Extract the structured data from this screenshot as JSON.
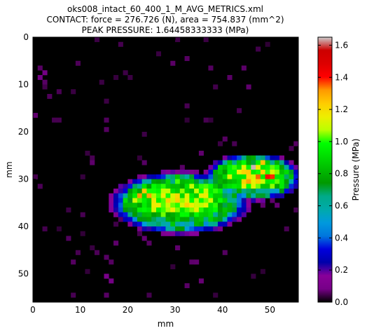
{
  "chart_data": {
    "type": "heatmap",
    "title_lines": [
      "oks008_intact_60_400_1_M_AVG_METRICS.xml",
      "CONTACT: force = 276.726 (N), area = 754.837 (mm^2)",
      "PEAK PRESSURE: 1.64458333333 (MPa)"
    ],
    "xlabel": "mm",
    "ylabel": "mm",
    "xlim": [
      0,
      56
    ],
    "ylim": [
      56,
      0
    ],
    "x_ticks": [
      0,
      10,
      20,
      30,
      40,
      50
    ],
    "y_ticks": [
      0,
      10,
      20,
      30,
      40,
      50
    ],
    "grid": false,
    "colorbar": {
      "label": "Pressure (MPa)",
      "range": [
        0.0,
        1.65
      ],
      "ticks": [
        "0.0",
        "0.2",
        "0.4",
        "0.6",
        "0.8",
        "1.0",
        "1.2",
        "1.4",
        "1.6"
      ],
      "colormap": "nipy_spectral"
    },
    "peak_pressure": 1.64458333333,
    "contact_force_N": 276.726,
    "contact_area_mm2": 754.837,
    "grid_size_mm": 56,
    "cell_size_mm": 1,
    "sparse_cells": [
      [
        46,
        27,
        1.64
      ],
      [
        47,
        29,
        1.35
      ],
      [
        49,
        29,
        1.4
      ],
      [
        50,
        29,
        1.38
      ],
      [
        45,
        30,
        1.3
      ],
      [
        48,
        26,
        1.25
      ],
      [
        44,
        28,
        1.22
      ],
      [
        22,
        33,
        1.32
      ],
      [
        23,
        32,
        1.25
      ],
      [
        24,
        33,
        1.3
      ],
      [
        21,
        34,
        1.1
      ],
      [
        31,
        32,
        1.05
      ],
      [
        27,
        33,
        1.15
      ],
      [
        30,
        30,
        1.02
      ],
      [
        1,
        8,
        0.08
      ],
      [
        2,
        7,
        0.08
      ],
      [
        1,
        6,
        0.06
      ],
      [
        2,
        9,
        0.06
      ],
      [
        15,
        50,
        0.09
      ],
      [
        16,
        51,
        0.08
      ],
      [
        15,
        54,
        0.06
      ],
      [
        55,
        22,
        0.06
      ],
      [
        54,
        23,
        0.05
      ],
      [
        55,
        36,
        0.05
      ],
      [
        40,
        21,
        0.06
      ],
      [
        42,
        22,
        0.05
      ],
      [
        12,
        25,
        0.05
      ],
      [
        23,
        42,
        0.07
      ],
      [
        24,
        43,
        0.06
      ],
      [
        9,
        45,
        0.05
      ],
      [
        32,
        14,
        0.05
      ],
      [
        36,
        17,
        0.05
      ],
      [
        53,
        40,
        0.05
      ],
      [
        18,
        38,
        0.06
      ]
    ]
  }
}
